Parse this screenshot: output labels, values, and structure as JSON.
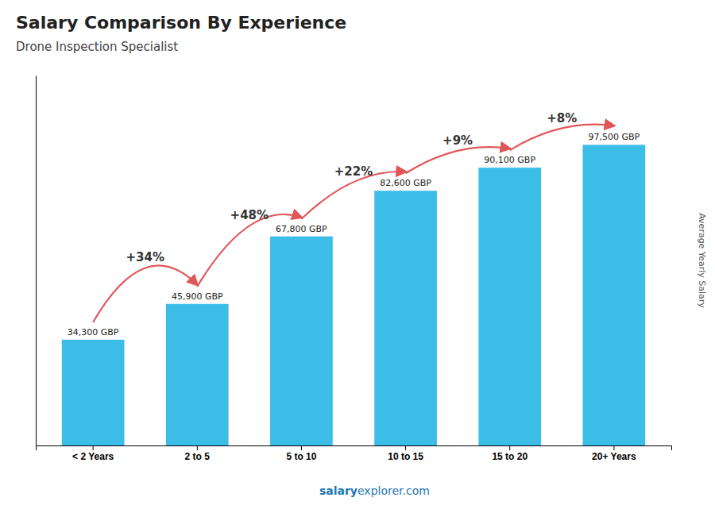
{
  "chart_data": {
    "type": "bar",
    "title": "Salary Comparison By Experience",
    "subtitle": "Drone Inspection Specialist",
    "ylabel": "Average Yearly Salary",
    "categories": [
      "< 2 Years",
      "2 to 5",
      "5 to 10",
      "10 to 15",
      "15 to 20",
      "20+ Years"
    ],
    "values": [
      34300,
      45900,
      67800,
      82600,
      90100,
      97500
    ],
    "value_labels": [
      "34,300 GBP",
      "45,900 GBP",
      "67,800 GBP",
      "82,600 GBP",
      "90,100 GBP",
      "97,500 GBP"
    ],
    "data_labels": true,
    "annotations": [
      "+34%",
      "+48%",
      "+22%",
      "+9%",
      "+8%"
    ],
    "footer": [
      "salary",
      "explorer.com"
    ],
    "color": "#3bbde8",
    "ylim": [
      0,
      120000
    ],
    "tick_labels": "x",
    "grid": false
  }
}
